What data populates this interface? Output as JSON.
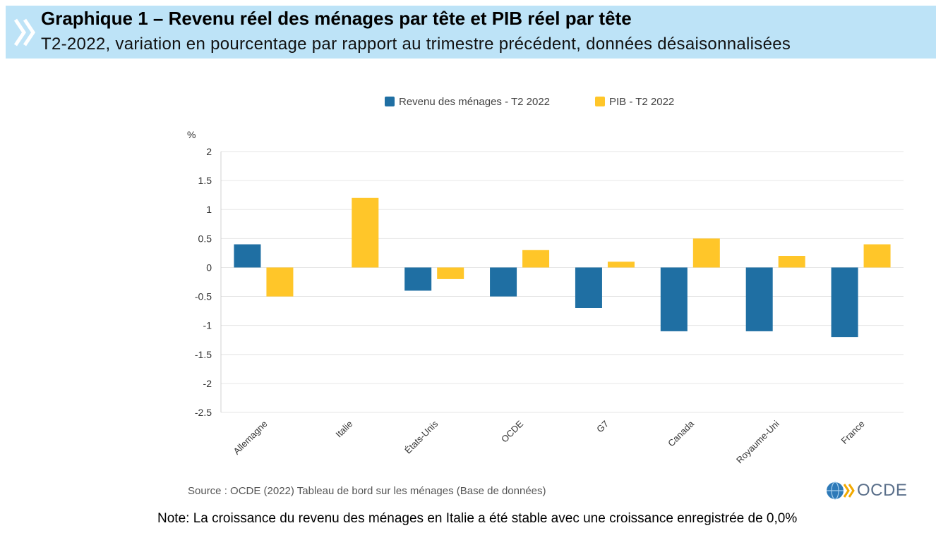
{
  "header": {
    "title": "Graphique 1 – Revenu réel des ménages par tête et PIB réel par tête",
    "subtitle": "T2-2022, variation en pourcentage par rapport au trimestre précédent, données désaisonnalisées"
  },
  "colors": {
    "household": "#1f6fa3",
    "gdp": "#ffc629",
    "header_bg": "#bde3f7",
    "chevron": "#ffffff",
    "grid": "#e6e6e6",
    "axis_text": "#333333"
  },
  "chart_data": {
    "type": "bar",
    "title": "",
    "xlabel": "",
    "ylabel": "%",
    "ylim": [
      -2.5,
      2
    ],
    "yticks": [
      2,
      1.5,
      1,
      0.5,
      0,
      -0.5,
      -1,
      -1.5,
      -2,
      -2.5
    ],
    "ytick_labels": [
      "2",
      "1.5",
      "1",
      "0.5",
      "0",
      "-0.5",
      "-1",
      "-1.5",
      "-2",
      "-2.5"
    ],
    "grid": true,
    "legend_position": "top-center",
    "categories": [
      "Allemagne",
      "Italie",
      "États-Unis",
      "OCDE",
      "G7",
      "Canada",
      "Royaume-Uni",
      "France"
    ],
    "series": [
      {
        "name": "Revenu des ménages - T2 2022",
        "values": [
          0.4,
          0.0,
          -0.4,
          -0.5,
          -0.7,
          -1.1,
          -1.1,
          -1.2
        ]
      },
      {
        "name": "PIB - T2 2022",
        "values": [
          -0.5,
          1.2,
          -0.2,
          0.3,
          0.1,
          0.5,
          0.2,
          0.4
        ]
      }
    ]
  },
  "footer": {
    "source": "Source : OCDE (2022) Tableau de bord sur les ménages (Base de données)",
    "note": "Note: La croissance du revenu des ménages en Italie a été stable avec une croissance enregistrée de 0,0%",
    "logo_text": "OCDE"
  }
}
